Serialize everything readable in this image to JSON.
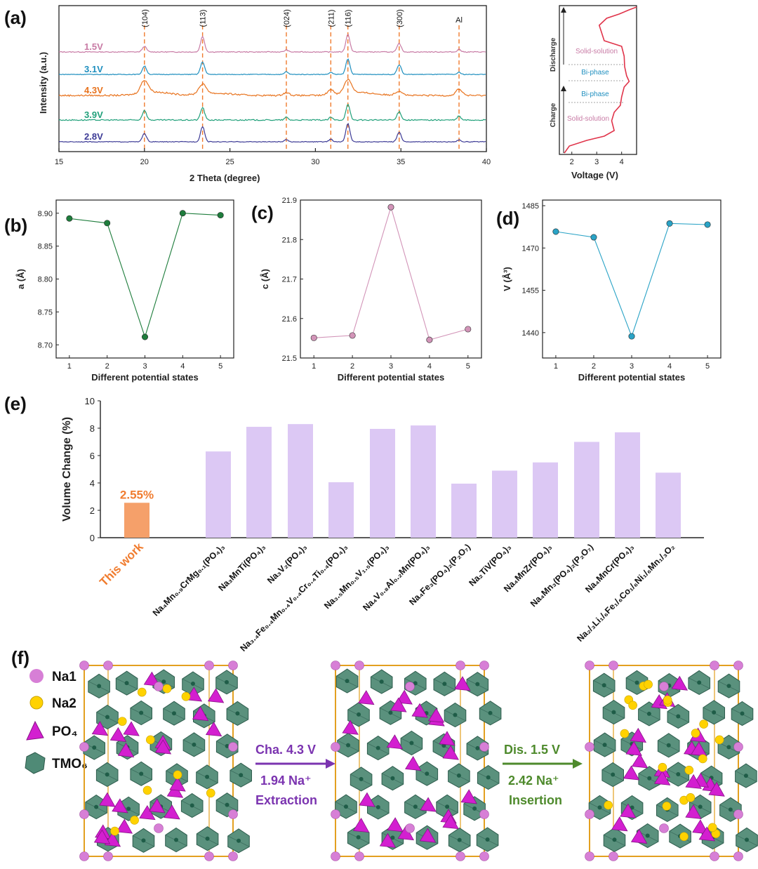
{
  "panels": {
    "a": "(a)",
    "b": "(b)",
    "c": "(c)",
    "d": "(d)",
    "e": "(e)",
    "f": "(f)"
  },
  "chart_data": [
    {
      "id": "a",
      "type": "line",
      "xlabel": "2 Theta (degree)",
      "ylabel": "Intensity (a.u.)",
      "xlim": [
        15,
        40
      ],
      "xticks": [
        15,
        20,
        25,
        30,
        35,
        40
      ],
      "peaks": [
        {
          "label": "(104)",
          "x": 20.0
        },
        {
          "label": "(113)",
          "x": 23.4
        },
        {
          "label": "(024)",
          "x": 28.3
        },
        {
          "label": "(211)",
          "x": 30.9
        },
        {
          "label": "(116)",
          "x": 31.9
        },
        {
          "label": "(300)",
          "x": 34.9
        },
        {
          "label": "Al",
          "x": 38.4
        }
      ],
      "series": [
        {
          "name": "1.5V",
          "color": "#c87ba5"
        },
        {
          "name": "3.1V",
          "color": "#1f8fbf"
        },
        {
          "name": "4.3V",
          "color": "#e8731e"
        },
        {
          "name": "3.9V",
          "color": "#20a07a"
        },
        {
          "name": "2.8V",
          "color": "#3d3b96"
        }
      ]
    },
    {
      "id": "a-right",
      "type": "line",
      "xlabel": "Voltage (V)",
      "xticks": [
        2,
        3,
        4
      ],
      "xlim": [
        1.5,
        4.6
      ],
      "labels": {
        "discharge": "Discharge",
        "charge": "Charge",
        "solid_top": "Solid-solution",
        "biphase_top": "Bi-phase",
        "biphase_bottom": "Bi-phase",
        "solid_bottom": "Solid-solution"
      },
      "color": "#e0344a"
    },
    {
      "id": "b",
      "type": "line",
      "xlabel": "Different potential states",
      "ylabel": "a (Å)",
      "x": [
        1,
        2,
        3,
        4,
        5
      ],
      "values": [
        8.892,
        8.885,
        8.712,
        8.9,
        8.897
      ],
      "ylim": [
        8.68,
        8.92
      ],
      "yticks": [
        8.7,
        8.75,
        8.8,
        8.85,
        8.9
      ],
      "color": "#1e7d3c"
    },
    {
      "id": "c",
      "type": "line",
      "xlabel": "Different potential states",
      "ylabel": "c (Å)",
      "x": [
        1,
        2,
        3,
        4,
        5
      ],
      "values": [
        21.551,
        21.557,
        21.882,
        21.546,
        21.573
      ],
      "ylim": [
        21.5,
        21.9
      ],
      "yticks": [
        21.5,
        21.6,
        21.7,
        21.8,
        21.9
      ],
      "color": "#d294b8"
    },
    {
      "id": "d",
      "type": "line",
      "xlabel": "Different potential states",
      "ylabel": "V (Å³)",
      "x": [
        1,
        2,
        3,
        4,
        5
      ],
      "values": [
        1475.8,
        1473.8,
        1438.7,
        1478.7,
        1478.3
      ],
      "ylim": [
        1431,
        1487
      ],
      "yticks": [
        1440,
        1455,
        1470,
        1485
      ],
      "color": "#2aa3c6"
    },
    {
      "id": "e",
      "type": "bar",
      "ylabel": "Volume Change (%)",
      "ylim": [
        0,
        10
      ],
      "yticks": [
        0,
        2,
        4,
        6,
        8,
        10
      ],
      "highlight": {
        "label": "2.55%",
        "color": "#f5a06a",
        "text_color": "#f07c2f"
      },
      "bar_color": "#dcc8f4",
      "categories": [
        {
          "label": "This work",
          "value": 2.55,
          "highlight": true
        },
        {
          "label": "Na₄Mn₀.₉CrMg₀.₁(PO₄)₃",
          "value": 6.3
        },
        {
          "label": "Na₃MnTi(PO₄)₃",
          "value": 8.1
        },
        {
          "label": "Na₃V₂(PO₄)₃",
          "value": 8.3
        },
        {
          "label": "Na₃.₄Fe₀.₄Mn₀.₄V₀.₄Cr₀.₄Ti₀.₄(PO₄)₃",
          "value": 4.05
        },
        {
          "label": "Na₃.₅Mn₀.₅V₁.₅(PO₄)₃",
          "value": 7.95
        },
        {
          "label": "Na₄V₀.₈Al₀.₂Mn(PO₄)₃",
          "value": 8.2
        },
        {
          "label": "Na₄Fe₃(PO₄)₂(P₂O₇)",
          "value": 3.95
        },
        {
          "label": "Na₂TiV(PO₄)₃",
          "value": 4.9
        },
        {
          "label": "Na₄MnZr(PO₄)₃",
          "value": 5.5
        },
        {
          "label": "Na₄Mn₃(PO₄)₂(P₂O₇)",
          "value": 7.0
        },
        {
          "label": "Na₄MnCr(PO₄)₃",
          "value": 7.7
        },
        {
          "label": "Na₂/₃Li₁/₆Fe₁/₆Co₁/₆Ni₁/₆Mn₁/₃O₂",
          "value": 4.75
        }
      ]
    }
  ],
  "structure": {
    "legend": [
      {
        "label": "Na1",
        "color": "#d77fd6"
      },
      {
        "label": "Na2",
        "color": "#ffd200"
      },
      {
        "label": "PO₄",
        "color": "#d31fd0"
      },
      {
        "label": "TMO₆",
        "color": "#4f8a76"
      }
    ],
    "arrow1": {
      "top": "Cha. 4.3 V",
      "bottom1": "1.94 Na⁺",
      "bottom2": "Extraction",
      "color": "#7b34b0"
    },
    "arrow2": {
      "top": "Dis. 1.5 V",
      "bottom1": "2.42 Na⁺",
      "bottom2": "Insertion",
      "color": "#4e8a2c"
    }
  }
}
